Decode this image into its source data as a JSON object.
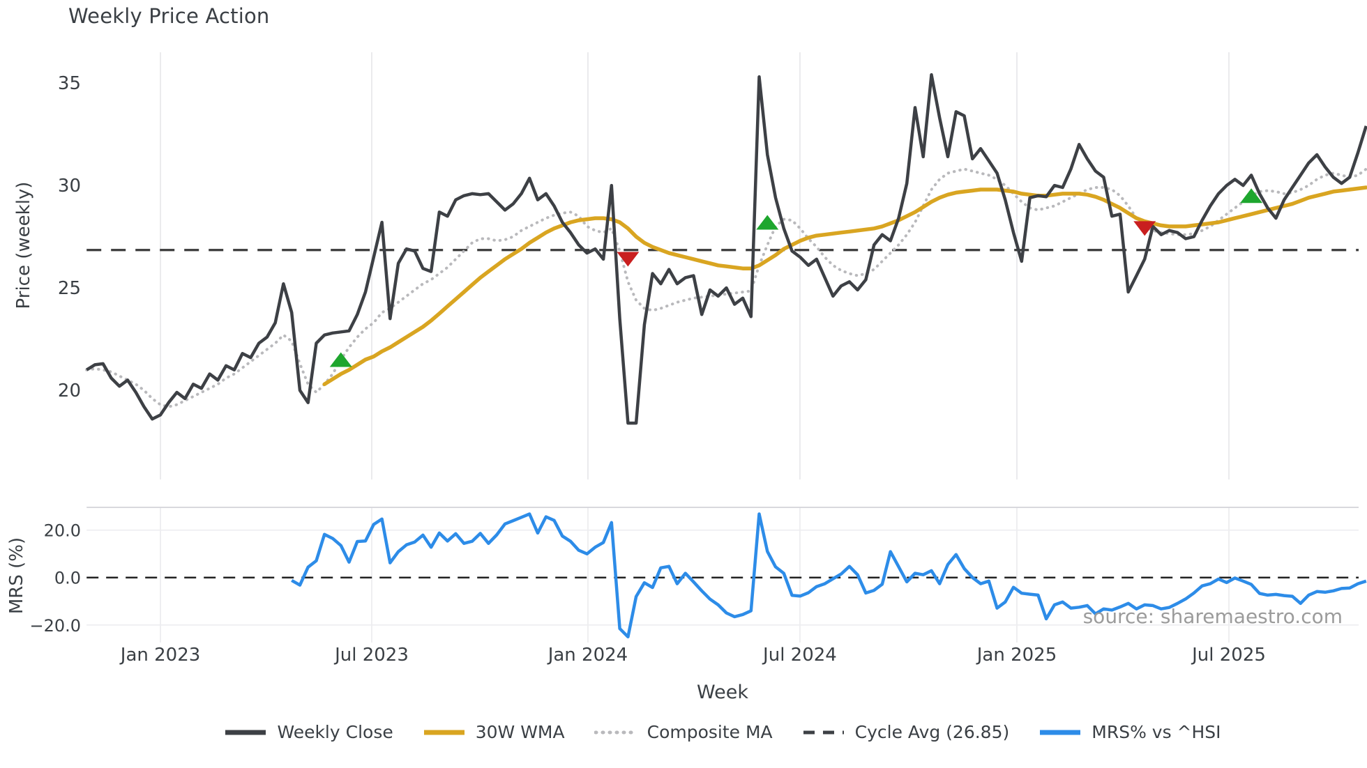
{
  "title": "Weekly Price Action",
  "source_note": "source: sharemaestro.com",
  "axes": {
    "top": {
      "ylabel": "Price (weekly)",
      "yticks": [
        {
          "label": "20",
          "value": 20
        },
        {
          "label": "25",
          "value": 25
        },
        {
          "label": "30",
          "value": 30
        },
        {
          "label": "35",
          "value": 35
        }
      ]
    },
    "bottom": {
      "ylabel": "MRS (%)",
      "yticks": [
        {
          "label": "20.0",
          "value": 20
        },
        {
          "label": "0.0",
          "value": 0
        },
        {
          "label": "−20.0",
          "value": -20
        }
      ]
    },
    "xlabel": "Week",
    "x_ticks": [
      {
        "label": "Jan 2023",
        "week": 9.0
      },
      {
        "label": "Jul 2023",
        "week": 34.76
      },
      {
        "label": "Jan 2024",
        "week": 61.12
      },
      {
        "label": "Jul 2024",
        "week": 86.97
      },
      {
        "label": "Jan 2025",
        "week": 113.42
      },
      {
        "label": "Jul 2025",
        "week": 139.27
      }
    ]
  },
  "legend": [
    {
      "label": "Weekly Close",
      "style": "solid",
      "color": "#3d4045"
    },
    {
      "label": "30W WMA",
      "style": "solid",
      "color": "#d9a521"
    },
    {
      "label": "Composite MA",
      "style": "dotted",
      "color": "#b9b9bc"
    },
    {
      "label": "Cycle Avg (26.85)",
      "style": "dashed",
      "color": "#3d4045"
    },
    {
      "label": "MRS% vs ^HSI",
      "style": "solid",
      "color": "#2d8ce8"
    }
  ],
  "colors": {
    "close": "#3d4045",
    "wma": "#d9a521",
    "composite": "#b9b9bc",
    "cycle": "#3a3a3a",
    "mrs": "#2d8ce8",
    "grid": "#e7e7ea",
    "spine": "#d8d8dd",
    "buy": "#1ea62e",
    "sell": "#c91f1f"
  },
  "chart_data": {
    "type": "line",
    "x_unit": "week",
    "start_date": "2022-10-31",
    "cycle_avg": 26.85,
    "top_ylim": [
      15.65,
      36.5
    ],
    "bottom_ylim": [
      -27.4,
      29.6
    ],
    "grid": "vertical-on",
    "legend_position": "bottom-center",
    "series": [
      {
        "name": "Weekly Close",
        "axis": "top",
        "values": [
          21.0,
          21.25,
          21.3,
          20.6,
          20.2,
          20.5,
          19.9,
          19.2,
          18.6,
          18.8,
          19.4,
          19.9,
          19.6,
          20.3,
          20.1,
          20.8,
          20.5,
          21.2,
          21.0,
          21.8,
          21.6,
          22.3,
          22.6,
          23.3,
          25.2,
          23.8,
          20.0,
          19.4,
          22.3,
          22.7,
          22.8,
          22.85,
          22.9,
          23.7,
          24.8,
          26.5,
          28.2,
          23.5,
          26.2,
          26.9,
          26.8,
          25.95,
          25.8,
          28.7,
          28.5,
          29.3,
          29.5,
          29.6,
          29.55,
          29.6,
          29.2,
          28.8,
          29.1,
          29.6,
          30.35,
          29.3,
          29.6,
          29.0,
          28.2,
          27.7,
          27.1,
          26.7,
          26.9,
          26.4,
          30.0,
          23.5,
          18.4,
          18.4,
          23.2,
          25.7,
          25.2,
          25.9,
          25.2,
          25.5,
          25.6,
          23.7,
          24.9,
          24.6,
          25.0,
          24.2,
          24.5,
          23.6,
          35.3,
          31.5,
          29.4,
          27.9,
          26.8,
          26.5,
          26.1,
          26.4,
          25.5,
          24.6,
          25.1,
          25.3,
          24.9,
          25.4,
          27.1,
          27.6,
          27.3,
          28.4,
          30.1,
          33.8,
          31.4,
          35.4,
          33.3,
          31.4,
          33.6,
          33.4,
          31.3,
          31.8,
          31.2,
          30.6,
          29.3,
          27.7,
          26.3,
          29.4,
          29.5,
          29.45,
          30.0,
          29.9,
          30.8,
          32.0,
          31.3,
          30.7,
          30.4,
          28.5,
          28.6,
          24.8,
          25.6,
          26.4,
          28.0,
          27.6,
          27.8,
          27.7,
          27.4,
          27.5,
          28.3,
          29.0,
          29.6,
          30.0,
          30.3,
          30.0,
          30.5,
          29.6,
          28.9,
          28.4,
          29.3,
          29.9,
          30.5,
          31.1,
          31.5,
          30.9,
          30.4,
          30.1,
          30.4,
          31.6,
          32.9
        ]
      },
      {
        "name": "30W WMA",
        "axis": "top",
        "values": [
          null,
          null,
          null,
          null,
          null,
          null,
          null,
          null,
          null,
          null,
          null,
          null,
          null,
          null,
          null,
          null,
          null,
          null,
          null,
          null,
          null,
          null,
          null,
          null,
          null,
          null,
          null,
          null,
          null,
          20.3,
          20.55,
          20.8,
          21.0,
          21.25,
          21.5,
          21.65,
          21.9,
          22.1,
          22.35,
          22.6,
          22.85,
          23.1,
          23.4,
          23.75,
          24.1,
          24.45,
          24.8,
          25.15,
          25.5,
          25.8,
          26.1,
          26.4,
          26.65,
          26.9,
          27.2,
          27.45,
          27.7,
          27.9,
          28.05,
          28.2,
          28.3,
          28.35,
          28.4,
          28.4,
          28.35,
          28.2,
          27.9,
          27.5,
          27.2,
          27.0,
          26.85,
          26.7,
          26.6,
          26.5,
          26.4,
          26.3,
          26.2,
          26.1,
          26.05,
          26.0,
          25.95,
          25.95,
          26.1,
          26.35,
          26.6,
          26.9,
          27.1,
          27.3,
          27.45,
          27.55,
          27.6,
          27.65,
          27.7,
          27.75,
          27.8,
          27.85,
          27.9,
          28.0,
          28.15,
          28.3,
          28.5,
          28.7,
          28.95,
          29.2,
          29.4,
          29.55,
          29.65,
          29.7,
          29.75,
          29.8,
          29.8,
          29.8,
          29.75,
          29.7,
          29.6,
          29.55,
          29.5,
          29.5,
          29.55,
          29.6,
          29.6,
          29.6,
          29.55,
          29.45,
          29.3,
          29.1,
          28.9,
          28.65,
          28.4,
          28.25,
          28.15,
          28.05,
          28.0,
          28.0,
          28.0,
          28.05,
          28.1,
          28.15,
          28.2,
          28.3,
          28.4,
          28.5,
          28.6,
          28.7,
          28.8,
          28.9,
          29.0,
          29.1,
          29.25,
          29.4,
          29.5,
          29.6,
          29.7,
          29.75,
          29.8,
          29.85,
          29.9
        ]
      },
      {
        "name": "Composite MA",
        "axis": "top",
        "values": [
          21.0,
          21.05,
          21.0,
          20.9,
          20.7,
          20.5,
          20.3,
          20.0,
          19.6,
          19.3,
          19.2,
          19.3,
          19.5,
          19.7,
          19.9,
          20.1,
          20.3,
          20.6,
          20.8,
          21.1,
          21.4,
          21.7,
          22.0,
          22.3,
          22.7,
          22.4,
          21.3,
          20.3,
          19.9,
          20.3,
          20.8,
          21.5,
          22.1,
          22.6,
          23.0,
          23.3,
          23.8,
          24.0,
          24.3,
          24.6,
          24.9,
          25.2,
          25.4,
          25.7,
          26.0,
          26.4,
          26.8,
          27.2,
          27.4,
          27.4,
          27.3,
          27.35,
          27.5,
          27.8,
          28.0,
          28.2,
          28.4,
          28.55,
          28.65,
          28.7,
          28.5,
          28.0,
          27.8,
          27.7,
          27.9,
          26.8,
          25.3,
          24.4,
          24.0,
          23.9,
          24.0,
          24.15,
          24.3,
          24.4,
          24.5,
          24.55,
          24.6,
          24.65,
          24.7,
          24.75,
          24.8,
          24.85,
          26.1,
          27.1,
          28.0,
          28.35,
          28.3,
          27.9,
          27.4,
          27.0,
          26.5,
          26.1,
          25.85,
          25.7,
          25.6,
          25.7,
          25.9,
          26.3,
          26.7,
          27.1,
          27.6,
          28.2,
          29.0,
          29.8,
          30.3,
          30.6,
          30.7,
          30.8,
          30.7,
          30.6,
          30.5,
          30.3,
          30.0,
          29.6,
          29.2,
          28.9,
          28.8,
          28.9,
          29.0,
          29.2,
          29.4,
          29.6,
          29.8,
          29.9,
          29.9,
          29.8,
          29.5,
          29.0,
          28.4,
          28.0,
          27.8,
          27.7,
          27.65,
          27.6,
          27.6,
          27.65,
          27.8,
          28.0,
          28.3,
          28.6,
          28.9,
          29.2,
          29.5,
          29.7,
          29.75,
          29.7,
          29.6,
          29.65,
          29.8,
          30.0,
          30.3,
          30.5,
          30.6,
          30.5,
          30.4,
          30.5,
          30.8
        ]
      },
      {
        "name": "MRS% vs ^HSI",
        "axis": "bottom",
        "values": [
          null,
          null,
          null,
          null,
          null,
          null,
          null,
          null,
          null,
          null,
          null,
          null,
          null,
          null,
          null,
          null,
          null,
          null,
          null,
          null,
          null,
          null,
          null,
          null,
          null,
          -1.2,
          -3.2,
          4.4,
          7.1,
          18.2,
          16.5,
          13.5,
          6.5,
          15.2,
          15.4,
          22.4,
          24.7,
          6.2,
          10.9,
          13.8,
          15.0,
          17.9,
          12.8,
          18.8,
          15.4,
          18.5,
          14.4,
          15.3,
          18.6,
          14.4,
          18.0,
          22.6,
          24.0,
          25.4,
          26.8,
          18.8,
          25.6,
          24.1,
          17.5,
          15.3,
          11.5,
          10.0,
          12.8,
          14.8,
          23.2,
          -21.5,
          -25.0,
          -8.0,
          -2.2,
          -4.2,
          4.1,
          4.7,
          -2.6,
          1.8,
          -1.8,
          -5.6,
          -9.1,
          -11.5,
          -14.9,
          -16.5,
          -15.6,
          -14.0,
          26.8,
          11.0,
          4.5,
          1.8,
          -7.5,
          -7.8,
          -6.4,
          -3.8,
          -2.6,
          -0.5,
          1.5,
          4.7,
          1.2,
          -6.5,
          -5.4,
          -2.8,
          10.9,
          4.6,
          -1.8,
          1.8,
          1.2,
          2.9,
          -2.6,
          5.5,
          9.7,
          3.8,
          0.0,
          -2.6,
          -1.5,
          -12.9,
          -10.3,
          -4.1,
          -6.6,
          -7.0,
          -7.4,
          -17.4,
          -11.5,
          -10.3,
          -12.9,
          -12.5,
          -11.8,
          -15.3,
          -13.2,
          -13.7,
          -12.4,
          -10.9,
          -13.2,
          -11.5,
          -11.8,
          -13.2,
          -12.6,
          -10.9,
          -9.0,
          -6.5,
          -3.5,
          -2.6,
          -0.6,
          -2.1,
          -0.2,
          -1.5,
          -2.9,
          -6.7,
          -7.4,
          -7.1,
          -7.6,
          -7.9,
          -10.9,
          -7.4,
          -5.9,
          -6.2,
          -5.6,
          -4.6,
          -4.4,
          -2.6,
          -1.5
        ]
      }
    ],
    "markers": [
      {
        "week": 31,
        "value": 21.5,
        "direction": "up"
      },
      {
        "week": 66,
        "value": 26.4,
        "direction": "down"
      },
      {
        "week": 83,
        "value": 28.2,
        "direction": "up"
      },
      {
        "week": 129,
        "value": 27.9,
        "direction": "down"
      },
      {
        "week": 142,
        "value": 29.5,
        "direction": "up"
      }
    ]
  }
}
